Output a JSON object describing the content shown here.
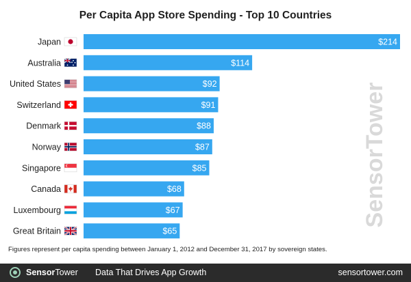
{
  "chart_data": {
    "type": "bar",
    "orientation": "horizontal",
    "title": "Per Capita App Store Spending - Top 10 Countries",
    "categories": [
      "Japan",
      "Australia",
      "United States",
      "Switzerland",
      "Denmark",
      "Norway",
      "Singapore",
      "Canada",
      "Luxembourg",
      "Great Britain"
    ],
    "values": [
      214,
      114,
      92,
      91,
      88,
      87,
      85,
      68,
      67,
      65
    ],
    "value_labels": [
      "$214",
      "$114",
      "$92",
      "$91",
      "$88",
      "$87",
      "$85",
      "$68",
      "$67",
      "$65"
    ],
    "flags": [
      "jp",
      "au",
      "us",
      "ch",
      "dk",
      "no",
      "sg",
      "ca",
      "lu",
      "gb"
    ],
    "bar_color": "#36a7f0",
    "xlim": [
      0,
      214
    ],
    "grid": false,
    "xlabel": "",
    "ylabel": ""
  },
  "footnote": "Figures represent per capita spending between January 1, 2012 and December 31, 2017 by sovereign states.",
  "footer": {
    "brand_bold": "Sensor",
    "brand_rest": "Tower",
    "tagline": "Data That Drives App Growth",
    "url": "sensortower.com",
    "logo_color": "#9ed2b8",
    "background": "#2b2b2b"
  },
  "watermark": {
    "text": "SensorTower",
    "color": "#d9d9d9"
  }
}
